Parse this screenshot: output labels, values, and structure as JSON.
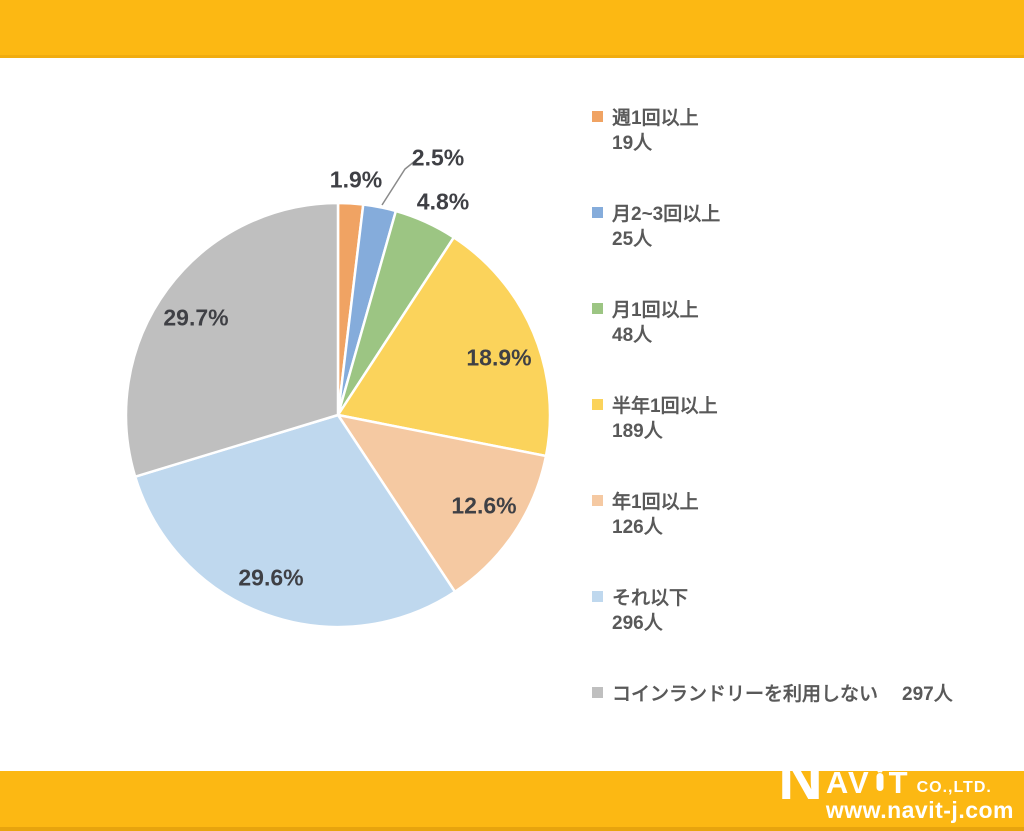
{
  "page": {
    "band_color": "#FCB813",
    "background": "#FFFFFF",
    "percent_label_color": "#3F4045",
    "legend_text_color": "#595959"
  },
  "chart_data": {
    "type": "pie",
    "title": "",
    "legend_position": "right",
    "start_angle_deg": 0,
    "direction": "clockwise",
    "slices": [
      {
        "label": "週1回以上",
        "value": 19,
        "count_label": "19人",
        "percent": 1.9,
        "percent_label": "1.9%",
        "color": "#F0A363"
      },
      {
        "label": "月2~3回以上",
        "value": 25,
        "count_label": "25人",
        "percent": 2.5,
        "percent_label": "2.5%",
        "color": "#85ACDB"
      },
      {
        "label": "月1回以上",
        "value": 48,
        "count_label": "48人",
        "percent": 4.8,
        "percent_label": "4.8%",
        "color": "#9CC583"
      },
      {
        "label": "半年1回以上",
        "value": 189,
        "count_label": "189人",
        "percent": 18.9,
        "percent_label": "18.9%",
        "color": "#FBD35B"
      },
      {
        "label": "年1回以上",
        "value": 126,
        "count_label": "126人",
        "percent": 12.6,
        "percent_label": "12.6%",
        "color": "#F5C9A2"
      },
      {
        "label": "それ以下",
        "value": 296,
        "count_label": "296人",
        "percent": 29.6,
        "percent_label": "29.6%",
        "color": "#BFD8EE"
      },
      {
        "label": "コインランドリーを利用しない",
        "value": 297,
        "count_label": "297人",
        "percent": 29.7,
        "percent_label": "29.7%",
        "color": "#BFBFBF"
      }
    ]
  },
  "footer": {
    "logo_n": "N",
    "logo_av": "AV",
    "logo_t": "T",
    "company_suffix": "CO.,LTD.",
    "website": "www.navit-j.com"
  }
}
